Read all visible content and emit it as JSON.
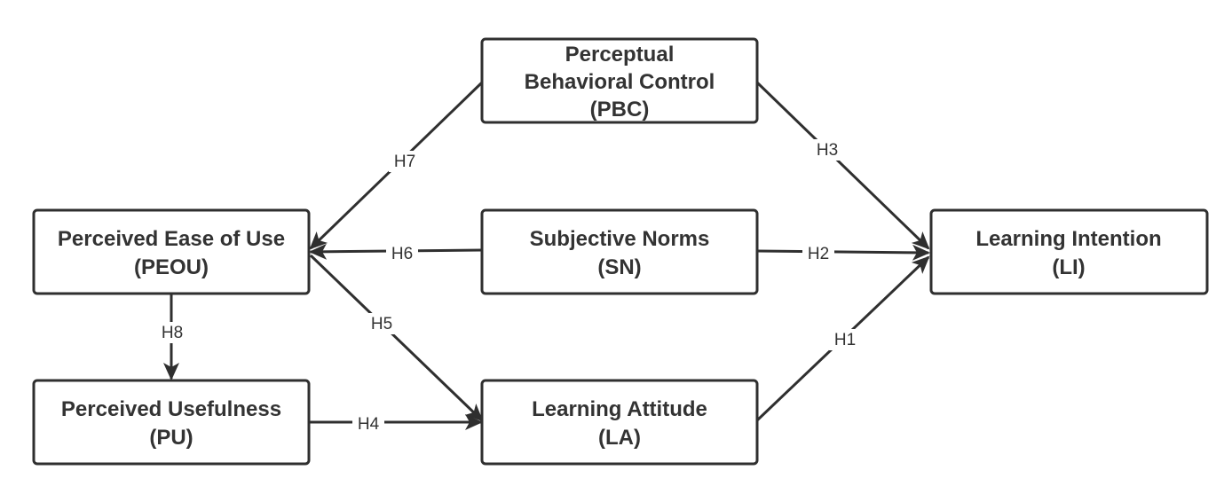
{
  "nodes": {
    "pbc": {
      "line1": "Perceptual",
      "line2": "Behavioral Control",
      "line3": "(PBC)"
    },
    "peou": {
      "line1": "Perceived Ease of Use",
      "line2": "(PEOU)"
    },
    "sn": {
      "line1": "Subjective Norms",
      "line2": "(SN)"
    },
    "li": {
      "line1": "Learning Intention",
      "line2": "(LI)"
    },
    "pu": {
      "line1": "Perceived Usefulness",
      "line2": "(PU)"
    },
    "la": {
      "line1": "Learning Attitude",
      "line2": "(LA)"
    }
  },
  "edges": {
    "h1": {
      "label": "H1",
      "from": "la",
      "to": "li"
    },
    "h2": {
      "label": "H2",
      "from": "sn",
      "to": "li"
    },
    "h3": {
      "label": "H3",
      "from": "pbc",
      "to": "li"
    },
    "h4": {
      "label": "H4",
      "from": "pu",
      "to": "la"
    },
    "h5": {
      "label": "H5",
      "from": "peou",
      "to": "la"
    },
    "h6": {
      "label": "H6",
      "from": "sn",
      "to": "peou"
    },
    "h7": {
      "label": "H7",
      "from": "pbc",
      "to": "peou"
    },
    "h8": {
      "label": "H8",
      "from": "peou",
      "to": "pu"
    }
  },
  "colors": {
    "stroke": "#2f2f2f",
    "text": "#333333",
    "background": "#ffffff"
  }
}
